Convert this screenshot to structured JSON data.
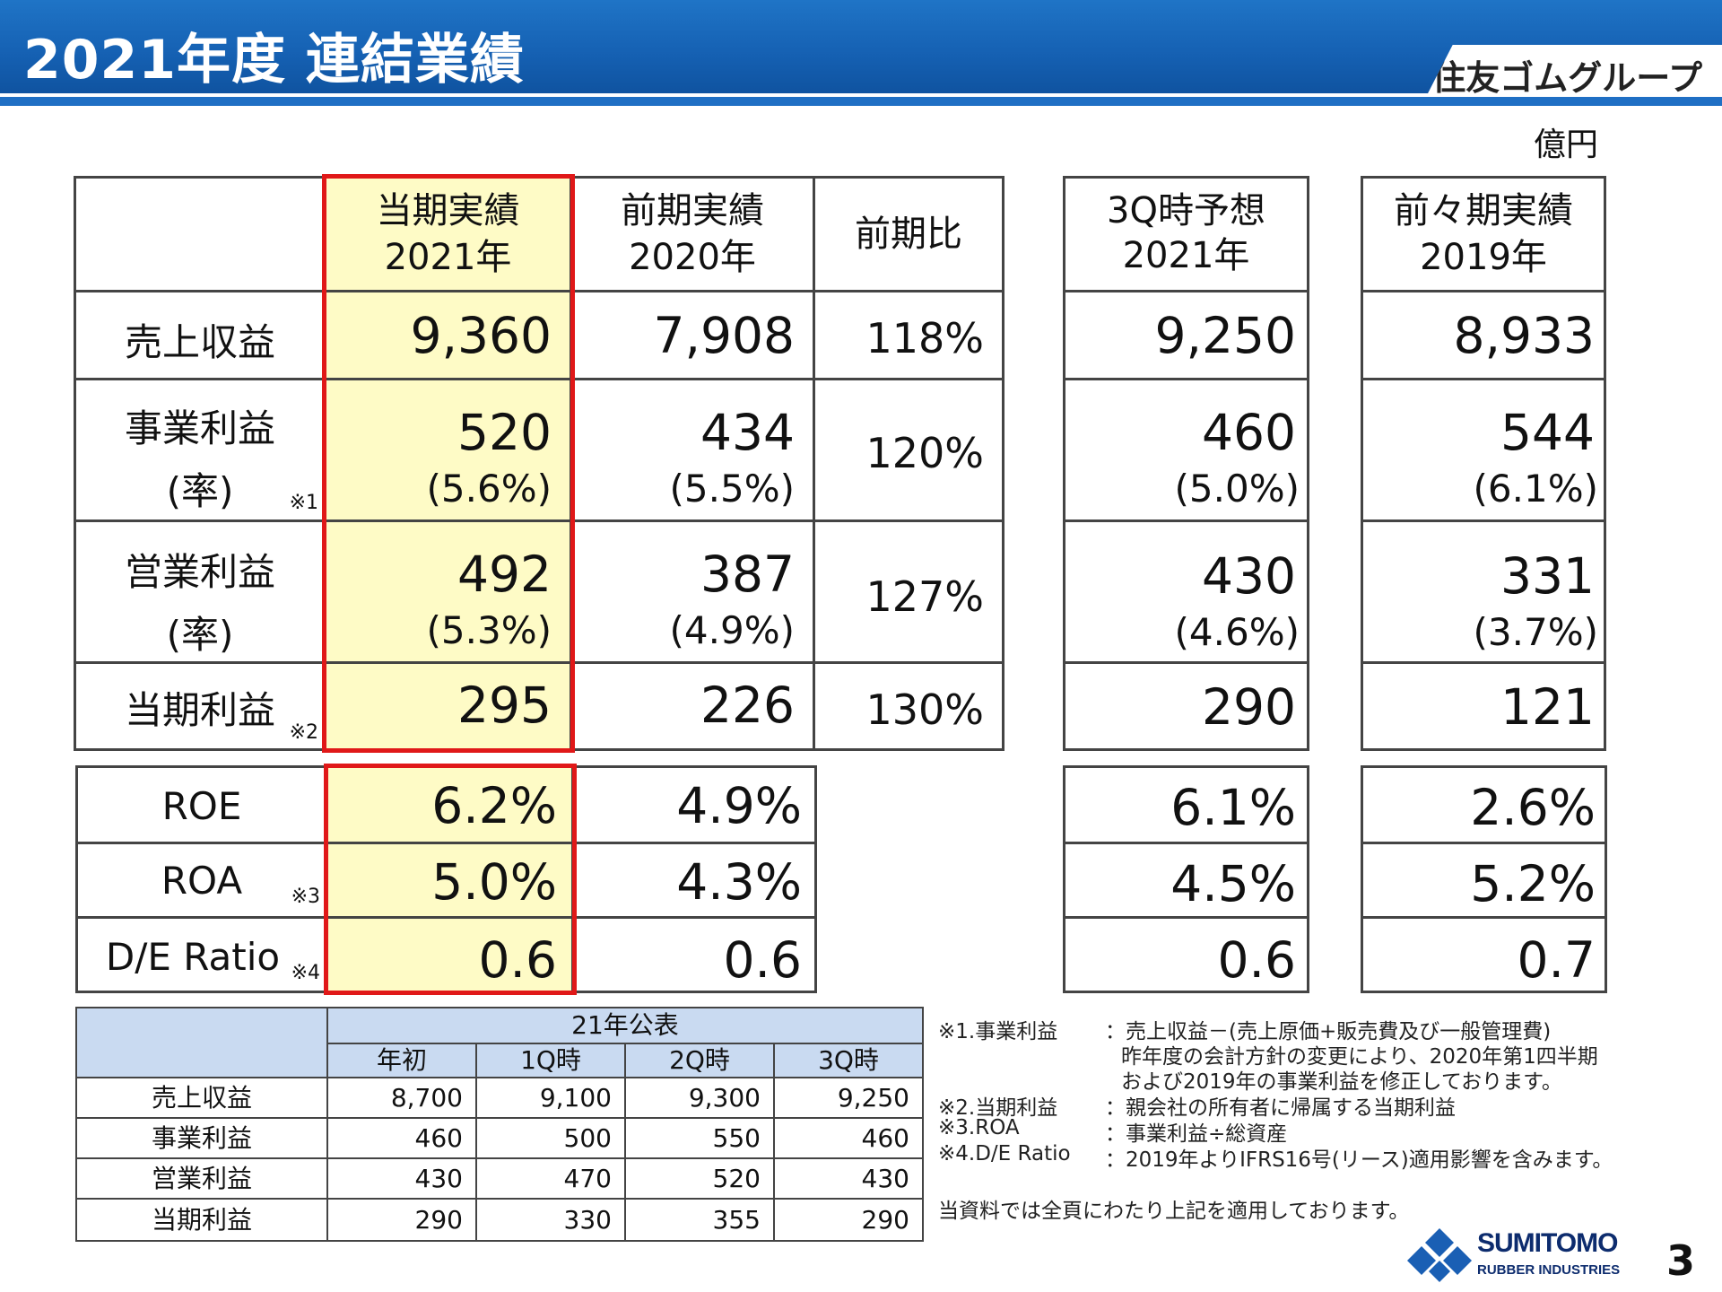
{
  "header": {
    "title": "2021年度 連結業績",
    "group_brand": "住友ゴムグループ"
  },
  "unit": "億円",
  "columns": {
    "current": {
      "line1": "当期実績",
      "line2": "2021年"
    },
    "prior": {
      "line1": "前期実績",
      "line2": "2020年"
    },
    "ratio": "前期比",
    "q3_forecast": {
      "line1": "3Q時予想",
      "line2": "2021年"
    },
    "two_prior": {
      "line1": "前々期実績",
      "line2": "2019年"
    }
  },
  "rows": {
    "revenue": {
      "label": "売上収益",
      "current": "9,360",
      "prior": "7,908",
      "ratio": "118%",
      "q3": "9,250",
      "y2019": "8,933"
    },
    "business_profit": {
      "label": "事業利益",
      "label2": "(率)",
      "mark": "※1",
      "current": "520",
      "current_rate": "(5.6%)",
      "prior": "434",
      "prior_rate": "(5.5%)",
      "ratio": "120%",
      "q3": "460",
      "q3_rate": "(5.0%)",
      "y2019": "544",
      "y2019_rate": "(6.1%)"
    },
    "operating_profit": {
      "label": "営業利益",
      "label2": "(率)",
      "current": "492",
      "current_rate": "(5.3%)",
      "prior": "387",
      "prior_rate": "(4.9%)",
      "ratio": "127%",
      "q3": "430",
      "q3_rate": "(4.6%)",
      "y2019": "331",
      "y2019_rate": "(3.7%)"
    },
    "net_profit": {
      "label": "当期利益",
      "mark": "※2",
      "current": "295",
      "prior": "226",
      "ratio": "130%",
      "q3": "290",
      "y2019": "121"
    },
    "roe": {
      "label": "ROE",
      "current": "6.2%",
      "prior": "4.9%",
      "q3": "6.1%",
      "y2019": "2.6%"
    },
    "roa": {
      "label": "ROA",
      "mark": "※3",
      "current": "5.0%",
      "prior": "4.3%",
      "q3": "4.5%",
      "y2019": "5.2%"
    },
    "de": {
      "label": "D/E Ratio",
      "mark": "※4",
      "current": "0.6",
      "prior": "0.6",
      "q3": "0.6",
      "y2019": "0.7"
    }
  },
  "forecast": {
    "group_header": "21年公表",
    "cols": [
      "年初",
      "1Q時",
      "2Q時",
      "3Q時"
    ],
    "rows": [
      {
        "label": "売上収益",
        "values": [
          "8,700",
          "9,100",
          "9,300",
          "9,250"
        ]
      },
      {
        "label": "事業利益",
        "values": [
          "460",
          "500",
          "550",
          "460"
        ]
      },
      {
        "label": "営業利益",
        "values": [
          "430",
          "470",
          "520",
          "430"
        ]
      },
      {
        "label": "当期利益",
        "values": [
          "290",
          "330",
          "355",
          "290"
        ]
      }
    ]
  },
  "footnotes": {
    "n1_key": "※1.事業利益",
    "n1_l1": "：売上収益－(売上原価+販売費及び一般管理費)",
    "n1_l2": "昨年度の会計方針の変更により、2020年第1四半期",
    "n1_l3": "および2019年の事業利益を修正しております。",
    "n2_key": "※2.当期利益",
    "n2_val": "：親会社の所有者に帰属する当期利益",
    "n3_key": "※3.ROA",
    "n3_val": "：事業利益÷総資産",
    "n4_key": "※4.D/E Ratio",
    "n4_val": "：2019年よりIFRS16号(リース)適用影響を含みます。",
    "applies": "当資料では全頁にわたり上記を適用しております。"
  },
  "logo": {
    "line1": "SUMITOMO",
    "line2": "RUBBER INDUSTRIES"
  },
  "page_number": "3",
  "colors": {
    "header_blue": "#1560b2",
    "highlight": "#fefbc6",
    "red_frame": "#e01818",
    "forecast_header": "#c9daf1"
  }
}
